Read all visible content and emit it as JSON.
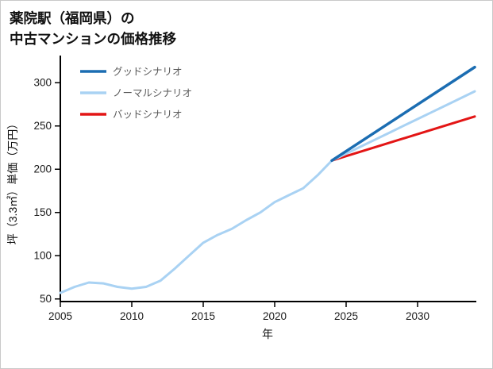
{
  "title": {
    "line1": "薬院駅（福岡県）の",
    "line2": "中古マンションの価格推移"
  },
  "chart_data": {
    "type": "line",
    "title": "薬院駅（福岡県）の中古マンションの価格推移",
    "xlabel": "年",
    "ylabel": "坪（3.3㎡）単価（万円）",
    "xlim": [
      2005,
      2034
    ],
    "ylim": [
      47,
      325
    ],
    "xticks": [
      2005,
      2010,
      2015,
      2020,
      2025,
      2030
    ],
    "yticks": [
      50,
      100,
      150,
      200,
      250,
      300
    ],
    "grid": false,
    "legend_position": "upper-left",
    "axis_color": "#000000",
    "tick_label_color": "#1a1a1a",
    "axis_label_color": "#111111",
    "legend_text_color": "#5a5a5a",
    "series": [
      {
        "name": "グッドシナリオ",
        "color": "#1b6db2",
        "line_width": 3.5,
        "x": [
          2024,
          2034
        ],
        "y": [
          210,
          318
        ]
      },
      {
        "name": "ノーマルシナリオ",
        "color": "#a9d2f3",
        "line_width": 3,
        "x": [
          2005,
          2006,
          2007,
          2008,
          2009,
          2010,
          2011,
          2012,
          2013,
          2014,
          2015,
          2016,
          2017,
          2018,
          2019,
          2020,
          2021,
          2022,
          2023,
          2024,
          2025,
          2026,
          2027,
          2028,
          2029,
          2030,
          2031,
          2032,
          2033,
          2034
        ],
        "y": [
          57,
          64,
          69,
          68,
          64,
          62,
          64,
          71,
          85,
          100,
          115,
          124,
          131,
          141,
          150,
          162,
          170,
          178,
          193,
          210,
          218,
          226,
          234,
          242,
          250,
          258,
          266,
          274,
          282,
          290
        ]
      },
      {
        "name": "バッドシナリオ",
        "color": "#e31515",
        "line_width": 3,
        "x": [
          2024,
          2034
        ],
        "y": [
          210,
          261
        ]
      }
    ]
  }
}
